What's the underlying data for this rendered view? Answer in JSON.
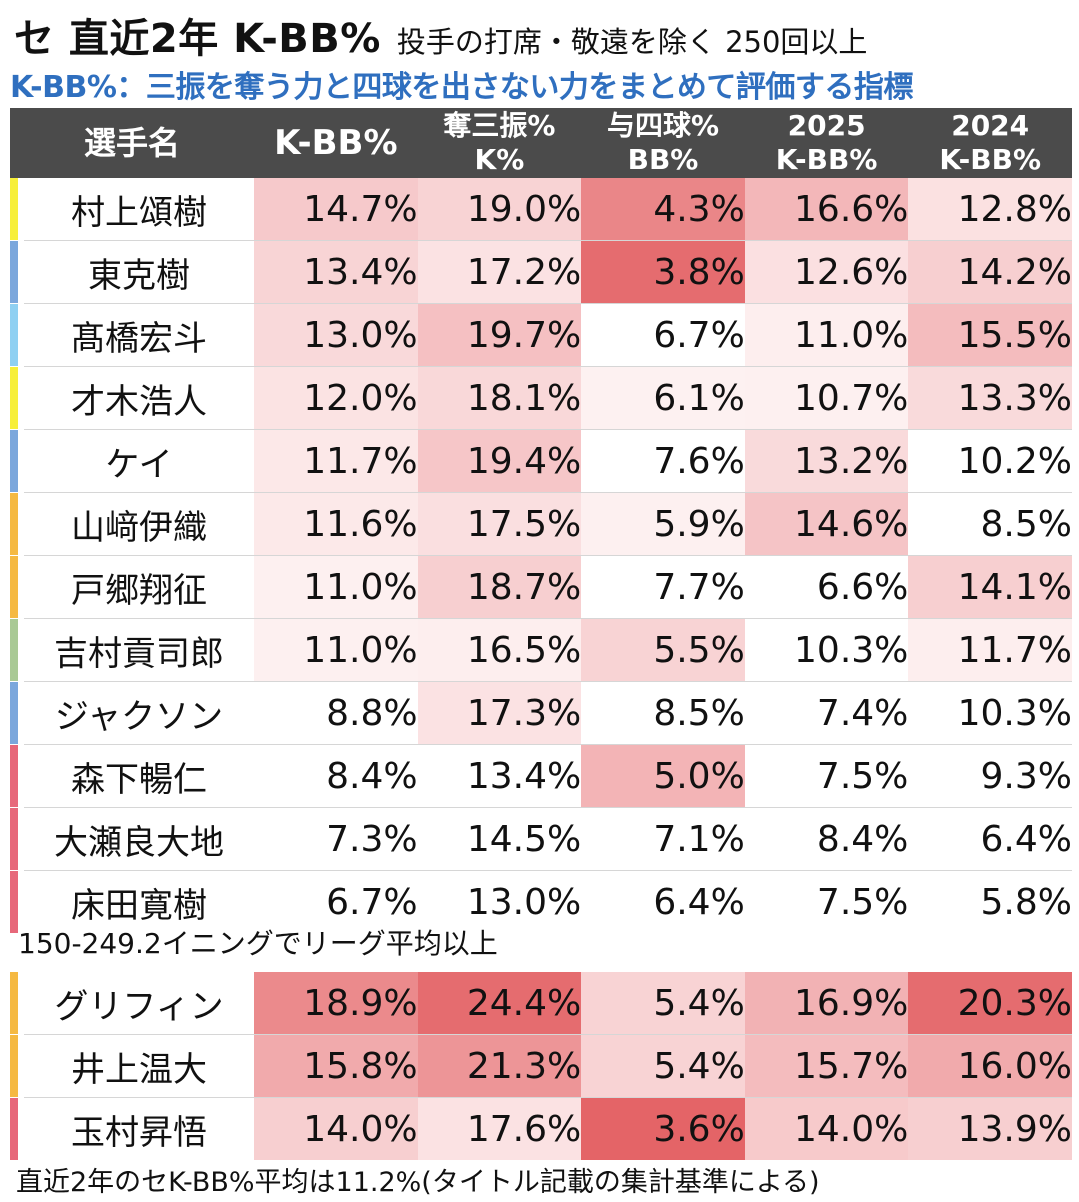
{
  "header": {
    "title": "セ 直近2年 K-BB%",
    "title_note": "投手の打席・敬遠を除く 250回以上",
    "subtitle": "K-BB%：三振を奪う力と四球を出さない力をまとめて評価する指標"
  },
  "table": {
    "columns": {
      "name": "選手名",
      "kbb": "K-BB%",
      "k_line1": "奪三振%",
      "k_line2": "K%",
      "bb_line1": "与四球%",
      "bb_line2": "BB%",
      "y2025_line1": "2025",
      "y2025_line2": "K-BB%",
      "y2024_line1": "2024",
      "y2024_line2": "K-BB%"
    },
    "group1": [
      {
        "name": "村上頌樹",
        "team_color": "#f7ef3a",
        "kbb": "14.7%",
        "k": "19.0%",
        "bb": "4.3%",
        "y2025": "16.6%",
        "y2024": "12.8%",
        "bg": [
          "#f6c9cb",
          "#f8d3d4",
          "#ea8688",
          "#f3b7b9",
          "#fbe1e1"
        ]
      },
      {
        "name": "東克樹",
        "team_color": "#7ba7dc",
        "kbb": "13.4%",
        "k": "17.2%",
        "bb": "3.8%",
        "y2025": "12.6%",
        "y2024": "14.2%",
        "bg": [
          "#f8d4d5",
          "#fbe2e3",
          "#e56c6f",
          "#fbe0e1",
          "#f7cfd0"
        ]
      },
      {
        "name": "髙橋宏斗",
        "team_color": "#8fd0f2",
        "kbb": "13.0%",
        "k": "19.7%",
        "bb": "6.7%",
        "y2025": "11.0%",
        "y2024": "15.5%",
        "bg": [
          "#f9d9da",
          "#f5c0c2",
          "#ffffff",
          "#fdeeee",
          "#f4bcbe"
        ]
      },
      {
        "name": "才木浩人",
        "team_color": "#f7ef3a",
        "kbb": "12.0%",
        "k": "18.1%",
        "bb": "6.1%",
        "y2025": "10.7%",
        "y2024": "13.3%",
        "bg": [
          "#fbe3e3",
          "#f9d8d9",
          "#fdf1f1",
          "#fdf0f0",
          "#f9dadb"
        ]
      },
      {
        "name": "ケイ",
        "team_color": "#7ba7dc",
        "kbb": "11.7%",
        "k": "19.4%",
        "bb": "7.6%",
        "y2025": "13.2%",
        "y2024": "10.2%",
        "bg": [
          "#fce8e8",
          "#f6c6c8",
          "#ffffff",
          "#f9dadb",
          "#ffffff"
        ]
      },
      {
        "name": "山﨑伊織",
        "team_color": "#f5b942",
        "kbb": "11.6%",
        "k": "17.5%",
        "bb": "5.9%",
        "y2025": "14.6%",
        "y2024": "8.5%",
        "bg": [
          "#fce9e9",
          "#fadfe0",
          "#fdf0f0",
          "#f5c4c6",
          "#ffffff"
        ]
      },
      {
        "name": "戸郷翔征",
        "team_color": "#f5b942",
        "kbb": "11.0%",
        "k": "18.7%",
        "bb": "7.7%",
        "y2025": "6.6%",
        "y2024": "14.1%",
        "bg": [
          "#fdf0f0",
          "#f7cfd0",
          "#ffffff",
          "#ffffff",
          "#f7cfd0"
        ]
      },
      {
        "name": "吉村貢司郎",
        "team_color": "#a9c995",
        "kbb": "11.0%",
        "k": "16.5%",
        "bb": "5.5%",
        "y2025": "10.3%",
        "y2024": "11.7%",
        "bg": [
          "#fdf0f0",
          "#fdeeee",
          "#f8d3d4",
          "#ffffff",
          "#fdeeee"
        ]
      },
      {
        "name": "ジャクソン",
        "team_color": "#7ba7dc",
        "kbb": "8.8%",
        "k": "17.3%",
        "bb": "8.5%",
        "y2025": "7.4%",
        "y2024": "10.3%",
        "bg": [
          "#ffffff",
          "#fbe2e3",
          "#ffffff",
          "#ffffff",
          "#ffffff"
        ]
      },
      {
        "name": "森下暢仁",
        "team_color": "#e7687a",
        "kbb": "8.4%",
        "k": "13.4%",
        "bb": "5.0%",
        "y2025": "7.5%",
        "y2024": "9.3%",
        "bg": [
          "#ffffff",
          "#ffffff",
          "#f3b4b6",
          "#ffffff",
          "#ffffff"
        ]
      },
      {
        "name": "大瀬良大地",
        "team_color": "#e7687a",
        "kbb": "7.3%",
        "k": "14.5%",
        "bb": "7.1%",
        "y2025": "8.4%",
        "y2024": "6.4%",
        "bg": [
          "#ffffff",
          "#ffffff",
          "#ffffff",
          "#ffffff",
          "#ffffff"
        ]
      },
      {
        "name": "床田寛樹",
        "team_color": "#e7687a",
        "kbb": "6.7%",
        "k": "13.0%",
        "bb": "6.4%",
        "y2025": "7.5%",
        "y2024": "5.8%",
        "bg": [
          "#ffffff",
          "#ffffff",
          "#ffffff",
          "#ffffff",
          "#ffffff"
        ]
      }
    ],
    "separator": "150-249.2イニングでリーグ平均以上",
    "group2": [
      {
        "name": "グリフィン",
        "team_color": "#f5b942",
        "kbb": "18.9%",
        "k": "24.4%",
        "bb": "5.4%",
        "y2025": "16.9%",
        "y2024": "20.3%",
        "bg": [
          "#eb8a8c",
          "#e56c6f",
          "#f8d3d4",
          "#f2b2b4",
          "#e56c6f"
        ]
      },
      {
        "name": "井上温大",
        "team_color": "#f5b942",
        "kbb": "15.8%",
        "k": "21.3%",
        "bb": "5.4%",
        "y2025": "15.7%",
        "y2024": "16.0%",
        "bg": [
          "#f1aaac",
          "#ed9597",
          "#f8d3d4",
          "#f4bcbe",
          "#f1aaac"
        ]
      },
      {
        "name": "玉村昇悟",
        "team_color": "#e7687a",
        "kbb": "14.0%",
        "k": "17.6%",
        "bb": "3.6%",
        "y2025": "14.0%",
        "y2024": "13.9%",
        "bg": [
          "#f7cfd0",
          "#fbe2e3",
          "#e46467",
          "#f7cacb",
          "#f7cfd0"
        ]
      }
    ]
  },
  "footer": "直近2年のセK-BB%平均は11.2%(タイトル記載の集計基準による)"
}
